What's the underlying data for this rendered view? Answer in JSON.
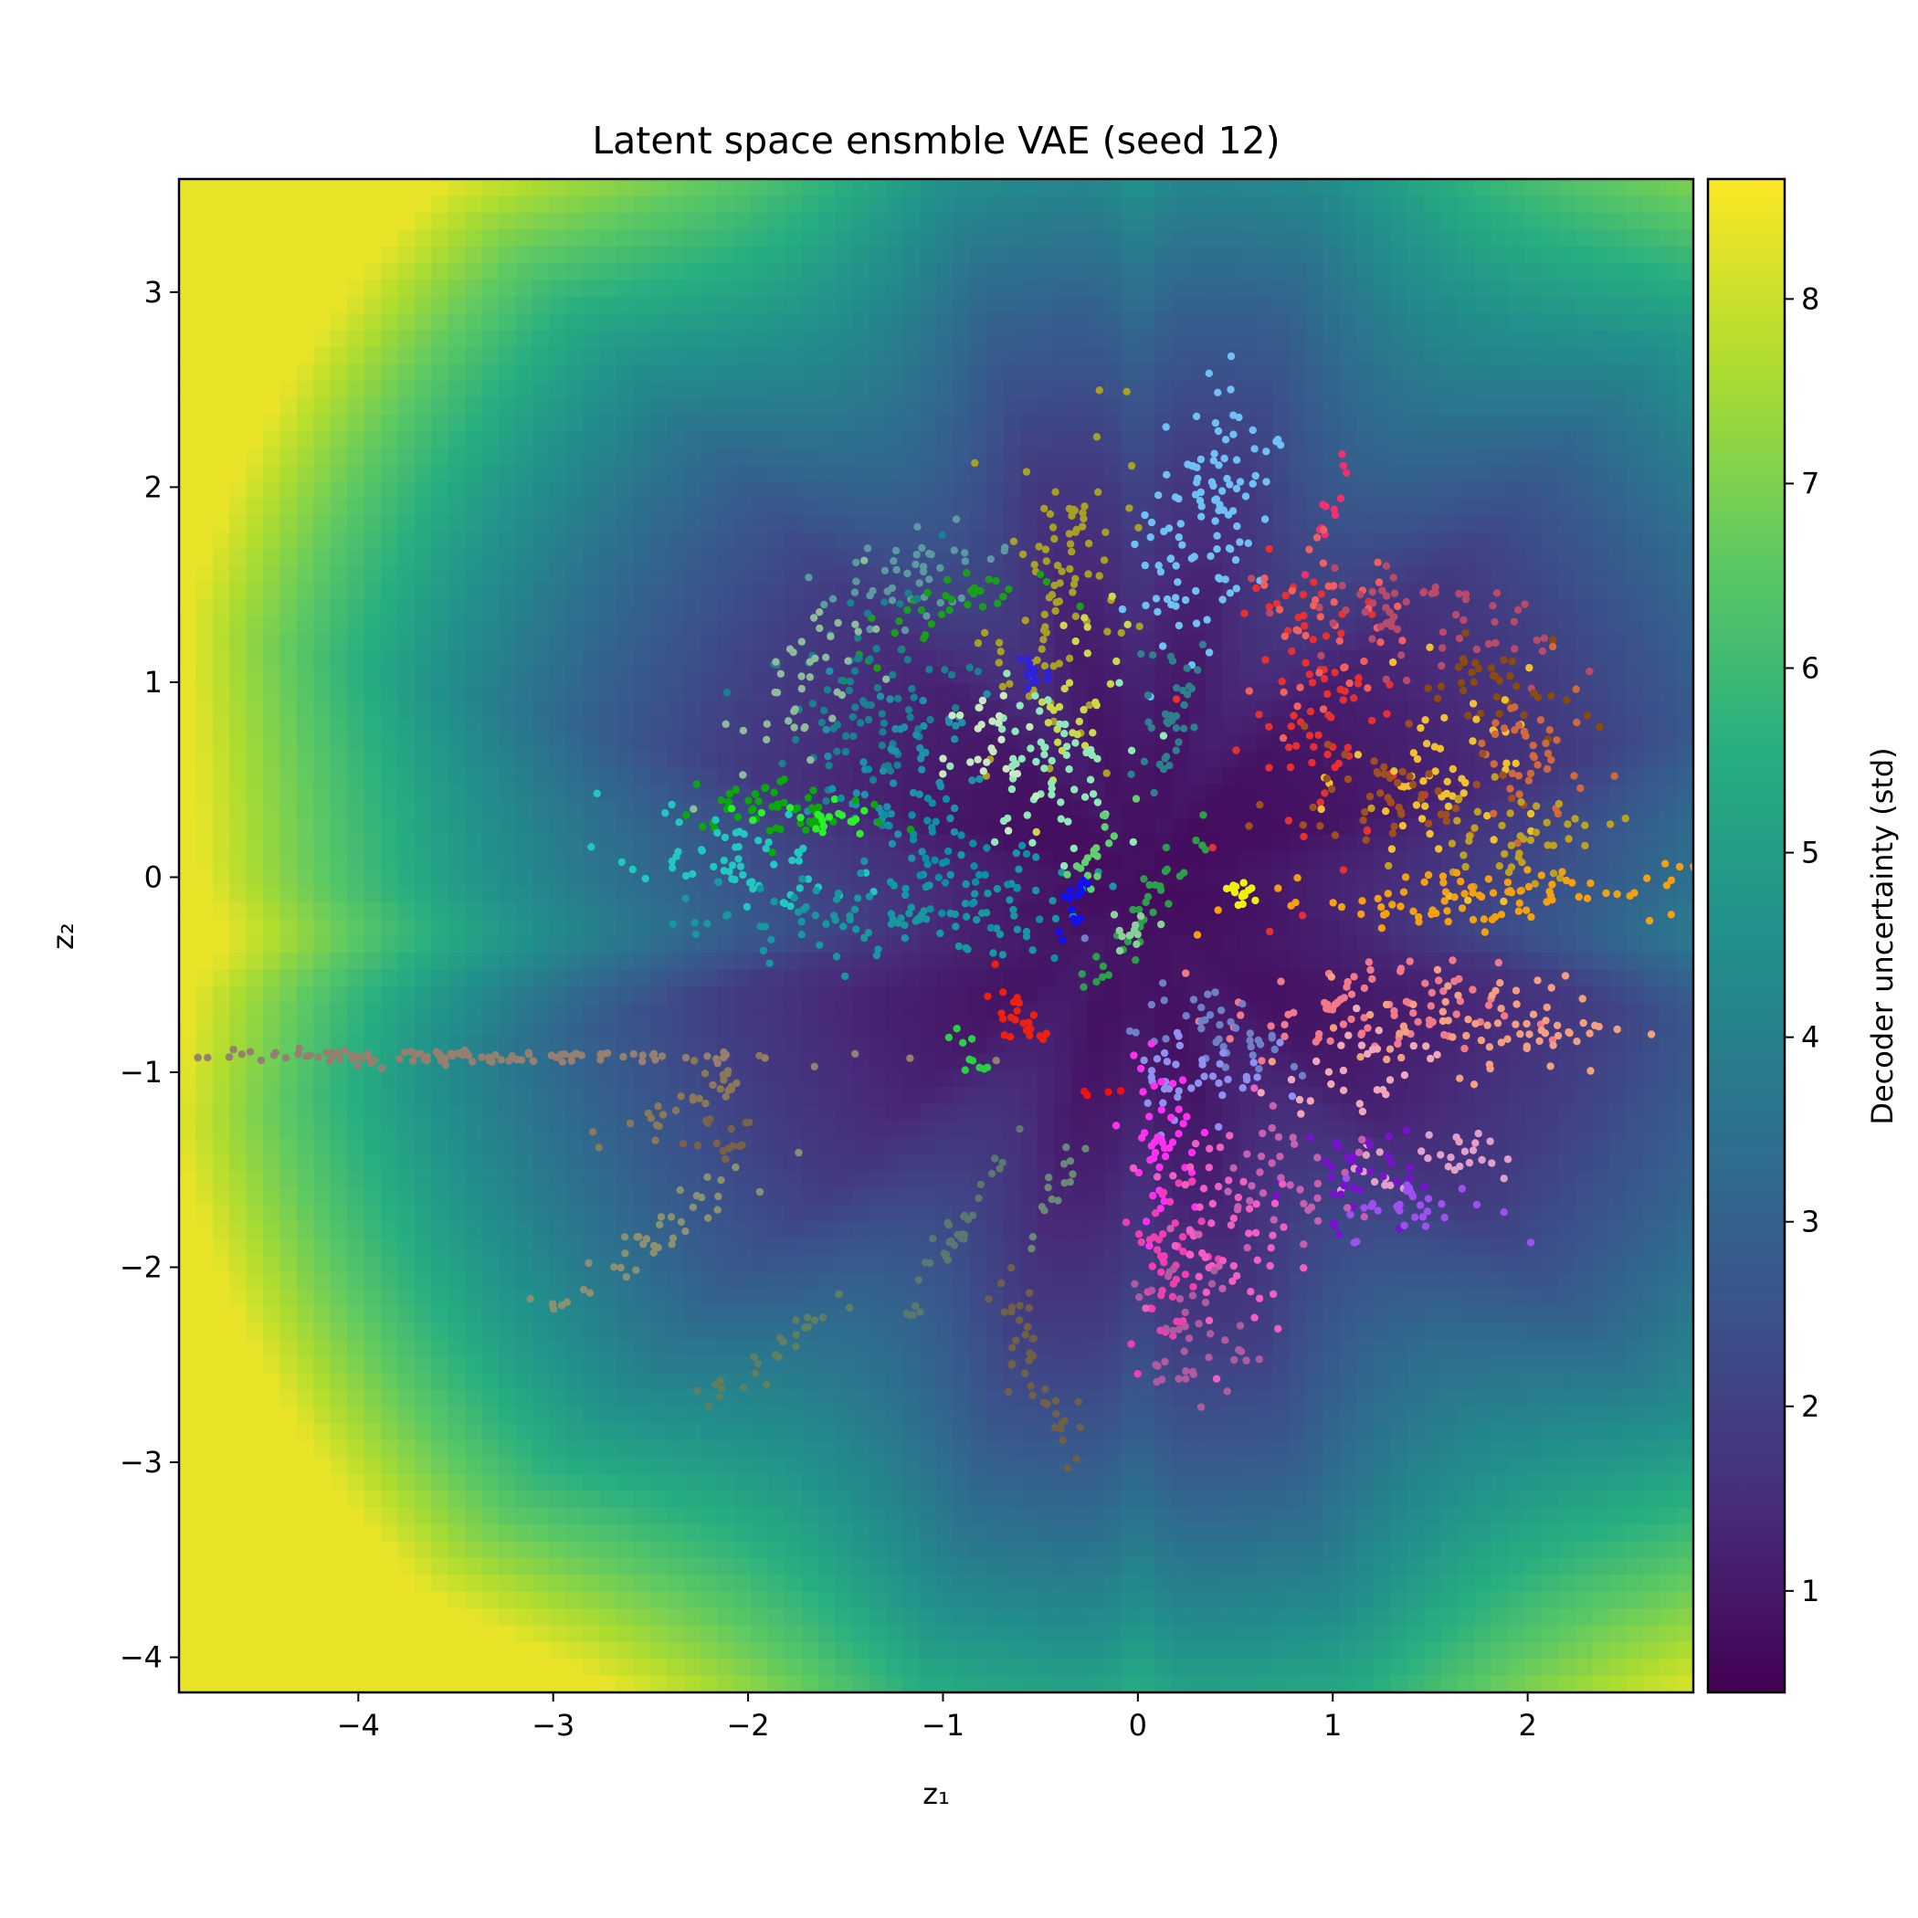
{
  "chart_data": {
    "type": "scatter",
    "title": "Latent space ensmble VAE (seed 12)",
    "xlabel": "z₁",
    "ylabel": "z₂",
    "xlim": [
      -4.92,
      2.85
    ],
    "ylim": [
      -4.18,
      3.58
    ],
    "xticks": [
      -4,
      -3,
      -2,
      -1,
      0,
      1,
      2
    ],
    "xtick_labels": [
      "−4",
      "−3",
      "−2",
      "−1",
      "0",
      "1",
      "2"
    ],
    "yticks": [
      3,
      2,
      1,
      0,
      -1,
      -2,
      -3,
      -4
    ],
    "ytick_labels": [
      "3",
      "2",
      "1",
      "0",
      "−1",
      "−2",
      "−3",
      "−4"
    ],
    "background": {
      "type": "heatmap",
      "colormap": "viridis",
      "quantity": "decoder uncertainty (std)",
      "description": "high (~8) in the far corners, low (~0.5-1) near the origin and along the data clusters"
    },
    "colorbar": {
      "label": "Decoder uncertainty (std)",
      "range": [
        0.45,
        8.65
      ],
      "ticks": [
        1,
        2,
        3,
        4,
        5,
        6,
        7,
        8
      ],
      "tick_labels": [
        "1",
        "2",
        "3",
        "4",
        "5",
        "6",
        "7",
        "8"
      ],
      "colors": [
        "#440154",
        "#472d7b",
        "#3b528b",
        "#2c728e",
        "#21918c",
        "#28ae80",
        "#5ec962",
        "#addc30",
        "#fde725"
      ]
    },
    "clusters": [
      {
        "color": "#6fc1f5",
        "center": [
          0.35,
          1.8
        ],
        "spread": [
          0.16,
          0.35
        ],
        "angle": -15,
        "count": 110
      },
      {
        "color": "#2f7f8c",
        "center": [
          0.15,
          0.85
        ],
        "spread": [
          0.08,
          0.25
        ],
        "angle": -10,
        "count": 35
      },
      {
        "color": "#a8a024",
        "center": [
          -0.4,
          1.5
        ],
        "spread": [
          0.16,
          0.45
        ],
        "angle": -12,
        "count": 90
      },
      {
        "color": "#cbd84a",
        "center": [
          -0.3,
          0.95
        ],
        "spread": [
          0.09,
          0.22
        ],
        "angle": -10,
        "count": 30
      },
      {
        "color": "#5b9aa0",
        "center": [
          -1.15,
          1.55
        ],
        "spread": [
          0.3,
          0.1
        ],
        "angle": 15,
        "count": 45
      },
      {
        "color": "#1a9f1a",
        "center": [
          -1.0,
          1.35
        ],
        "spread": [
          0.3,
          0.08
        ],
        "angle": 20,
        "count": 35
      },
      {
        "color": "#1a7f8f",
        "center": [
          -1.4,
          0.85
        ],
        "spread": [
          0.25,
          0.3
        ],
        "angle": -30,
        "count": 80
      },
      {
        "color": "#8dbb9b",
        "center": [
          -1.7,
          0.95
        ],
        "spread": [
          0.15,
          0.3
        ],
        "angle": -20,
        "count": 40
      },
      {
        "color": "#1e90a8",
        "center": [
          -1.15,
          0.55
        ],
        "spread": [
          0.22,
          0.22
        ],
        "angle": -30,
        "count": 60
      },
      {
        "color": "#8fe8b8",
        "center": [
          -0.5,
          0.55
        ],
        "spread": [
          0.2,
          0.22
        ],
        "angle": 0,
        "count": 60
      },
      {
        "color": "#c8e8c0",
        "center": [
          -0.75,
          0.6
        ],
        "spread": [
          0.12,
          0.2
        ],
        "angle": 0,
        "count": 25
      },
      {
        "color": "#3020e0",
        "center": [
          -0.55,
          1.05
        ],
        "spread": [
          0.05,
          0.08
        ],
        "angle": 0,
        "count": 15
      },
      {
        "color": "#0aa80a",
        "center": [
          -1.8,
          0.35
        ],
        "spread": [
          0.3,
          0.08
        ],
        "angle": -5,
        "count": 50
      },
      {
        "color": "#2cf02c",
        "center": [
          -1.65,
          0.3
        ],
        "spread": [
          0.15,
          0.06
        ],
        "angle": -5,
        "count": 20
      },
      {
        "color": "#20c8c0",
        "center": [
          -2.05,
          0.1
        ],
        "spread": [
          0.3,
          0.12
        ],
        "angle": -15,
        "count": 60
      },
      {
        "color": "#1797a0",
        "center": [
          -1.3,
          -0.2
        ],
        "spread": [
          0.5,
          0.13
        ],
        "angle": 5,
        "count": 110
      },
      {
        "color": "#0b8fa3",
        "center": [
          -0.95,
          0.05
        ],
        "spread": [
          0.3,
          0.15
        ],
        "angle": -30,
        "count": 40
      },
      {
        "color": "#60d070",
        "center": [
          -0.2,
          0.15
        ],
        "spread": [
          0.04,
          0.15
        ],
        "angle": -25,
        "count": 18
      },
      {
        "color": "#1010f0",
        "center": [
          -0.33,
          -0.12
        ],
        "spread": [
          0.03,
          0.08
        ],
        "angle": -20,
        "count": 15
      },
      {
        "color": "#2aa048",
        "center": [
          0.05,
          -0.15
        ],
        "spread": [
          0.05,
          0.25
        ],
        "angle": -35,
        "count": 35
      },
      {
        "color": "#8ccf9a",
        "center": [
          -0.05,
          -0.3
        ],
        "spread": [
          0.04,
          0.12
        ],
        "angle": -35,
        "count": 12
      },
      {
        "color": "#f0f010",
        "center": [
          0.52,
          -0.07
        ],
        "spread": [
          0.1,
          0.03
        ],
        "angle": -15,
        "count": 15
      },
      {
        "color": "#f03070",
        "center": [
          1.0,
          1.9
        ],
        "spread": [
          0.03,
          0.12
        ],
        "angle": -20,
        "count": 12
      },
      {
        "color": "#e83030",
        "center": [
          0.95,
          0.85
        ],
        "spread": [
          0.2,
          0.4
        ],
        "angle": 0,
        "count": 80
      },
      {
        "color": "#f06060",
        "center": [
          1.0,
          1.3
        ],
        "spread": [
          0.2,
          0.2
        ],
        "angle": 0,
        "count": 40
      },
      {
        "color": "#b84a6a",
        "center": [
          1.4,
          1.35
        ],
        "spread": [
          0.35,
          0.15
        ],
        "angle": -15,
        "count": 60
      },
      {
        "color": "#8a4a10",
        "center": [
          1.85,
          0.95
        ],
        "spread": [
          0.2,
          0.12
        ],
        "angle": -10,
        "count": 35
      },
      {
        "color": "#f0c030",
        "center": [
          1.6,
          0.5
        ],
        "spread": [
          0.25,
          0.25
        ],
        "angle": 0,
        "count": 60
      },
      {
        "color": "#d06a3a",
        "center": [
          2.0,
          0.6
        ],
        "spread": [
          0.15,
          0.2
        ],
        "angle": 0,
        "count": 40
      },
      {
        "color": "#a05020",
        "center": [
          1.3,
          0.4
        ],
        "spread": [
          0.3,
          0.15
        ],
        "angle": 0,
        "count": 50
      },
      {
        "color": "#c0a020",
        "center": [
          1.95,
          0.2
        ],
        "spread": [
          0.25,
          0.12
        ],
        "angle": 0,
        "count": 45
      },
      {
        "color": "#f4a010",
        "center": [
          1.7,
          -0.1
        ],
        "spread": [
          0.55,
          0.08
        ],
        "angle": 3,
        "count": 90
      },
      {
        "color": "#f07a8a",
        "center": [
          1.15,
          -0.7
        ],
        "spread": [
          0.35,
          0.13
        ],
        "angle": 0,
        "count": 80
      },
      {
        "color": "#f4a080",
        "center": [
          1.85,
          -0.75
        ],
        "spread": [
          0.35,
          0.13
        ],
        "angle": 0,
        "count": 70
      },
      {
        "color": "#f0a8b8",
        "center": [
          1.15,
          -1.0
        ],
        "spread": [
          0.2,
          0.15
        ],
        "angle": 20,
        "count": 30
      },
      {
        "color": "#e0a0c8",
        "center": [
          1.5,
          -1.45
        ],
        "spread": [
          0.3,
          0.1
        ],
        "angle": 15,
        "count": 30
      },
      {
        "color": "#7a10d0",
        "center": [
          1.1,
          -1.5
        ],
        "spread": [
          0.2,
          0.15
        ],
        "angle": 30,
        "count": 35
      },
      {
        "color": "#a050f0",
        "center": [
          1.45,
          -1.7
        ],
        "spread": [
          0.2,
          0.08
        ],
        "angle": 0,
        "count": 30
      },
      {
        "color": "#7080c8",
        "center": [
          0.45,
          -0.8
        ],
        "spread": [
          0.25,
          0.1
        ],
        "angle": -20,
        "count": 40
      },
      {
        "color": "#9090f0",
        "center": [
          0.3,
          -1.0
        ],
        "spread": [
          0.18,
          0.15
        ],
        "angle": 0,
        "count": 40
      },
      {
        "color": "#ff30f0",
        "center": [
          0.12,
          -1.35
        ],
        "spread": [
          0.1,
          0.2
        ],
        "angle": 0,
        "count": 45
      },
      {
        "color": "#f040b0",
        "center": [
          0.15,
          -1.95
        ],
        "spread": [
          0.1,
          0.25
        ],
        "angle": 0,
        "count": 50
      },
      {
        "color": "#f060c0",
        "center": [
          0.45,
          -1.8
        ],
        "spread": [
          0.17,
          0.25
        ],
        "angle": 10,
        "count": 55
      },
      {
        "color": "#c860b0",
        "center": [
          0.75,
          -1.6
        ],
        "spread": [
          0.25,
          0.2
        ],
        "angle": 25,
        "count": 40
      },
      {
        "color": "#b05aa0",
        "center": [
          0.25,
          -2.35
        ],
        "spread": [
          0.15,
          0.2
        ],
        "angle": 0,
        "count": 40
      },
      {
        "color": "#ee2010",
        "center": [
          -0.65,
          -0.7
        ],
        "spread": [
          0.1,
          0.05
        ],
        "angle": -30,
        "count": 22
      },
      {
        "color": "#2ad040",
        "center": [
          -0.85,
          -0.92
        ],
        "spread": [
          0.1,
          0.03
        ],
        "angle": -40,
        "count": 10
      },
      {
        "color": "#f01010",
        "center": [
          -0.15,
          -1.1
        ],
        "spread": [
          0.06,
          0.02
        ],
        "angle": 0,
        "count": 4
      },
      {
        "color": "#958070",
        "center": [
          -3.7,
          -0.92
        ],
        "spread": [
          0.9,
          0.02
        ],
        "angle": 0,
        "count": 120
      },
      {
        "color": "#8a7858",
        "center": [
          -2.3,
          -1.15
        ],
        "spread": [
          0.3,
          0.05
        ],
        "angle": 25,
        "count": 30
      },
      {
        "color": "#7a6248",
        "center": [
          -2.2,
          -1.3
        ],
        "spread": [
          0.12,
          0.08
        ],
        "angle": 0,
        "count": 15
      },
      {
        "color": "#8a9070",
        "center": [
          -2.45,
          -1.85
        ],
        "spread": [
          0.35,
          0.06
        ],
        "angle": 35,
        "count": 40
      },
      {
        "color": "#5f8060",
        "center": [
          -1.9,
          -2.45
        ],
        "spread": [
          0.2,
          0.05
        ],
        "angle": 40,
        "count": 25
      },
      {
        "color": "#5a7870",
        "center": [
          -0.95,
          -1.85
        ],
        "spread": [
          0.3,
          0.04
        ],
        "angle": 60,
        "count": 35
      },
      {
        "color": "#6a8878",
        "center": [
          -0.42,
          -1.6
        ],
        "spread": [
          0.15,
          0.03
        ],
        "angle": 65,
        "count": 15
      },
      {
        "color": "#706048",
        "center": [
          -0.5,
          -2.55
        ],
        "spread": [
          0.3,
          0.06
        ],
        "angle": -70,
        "count": 40
      }
    ]
  }
}
